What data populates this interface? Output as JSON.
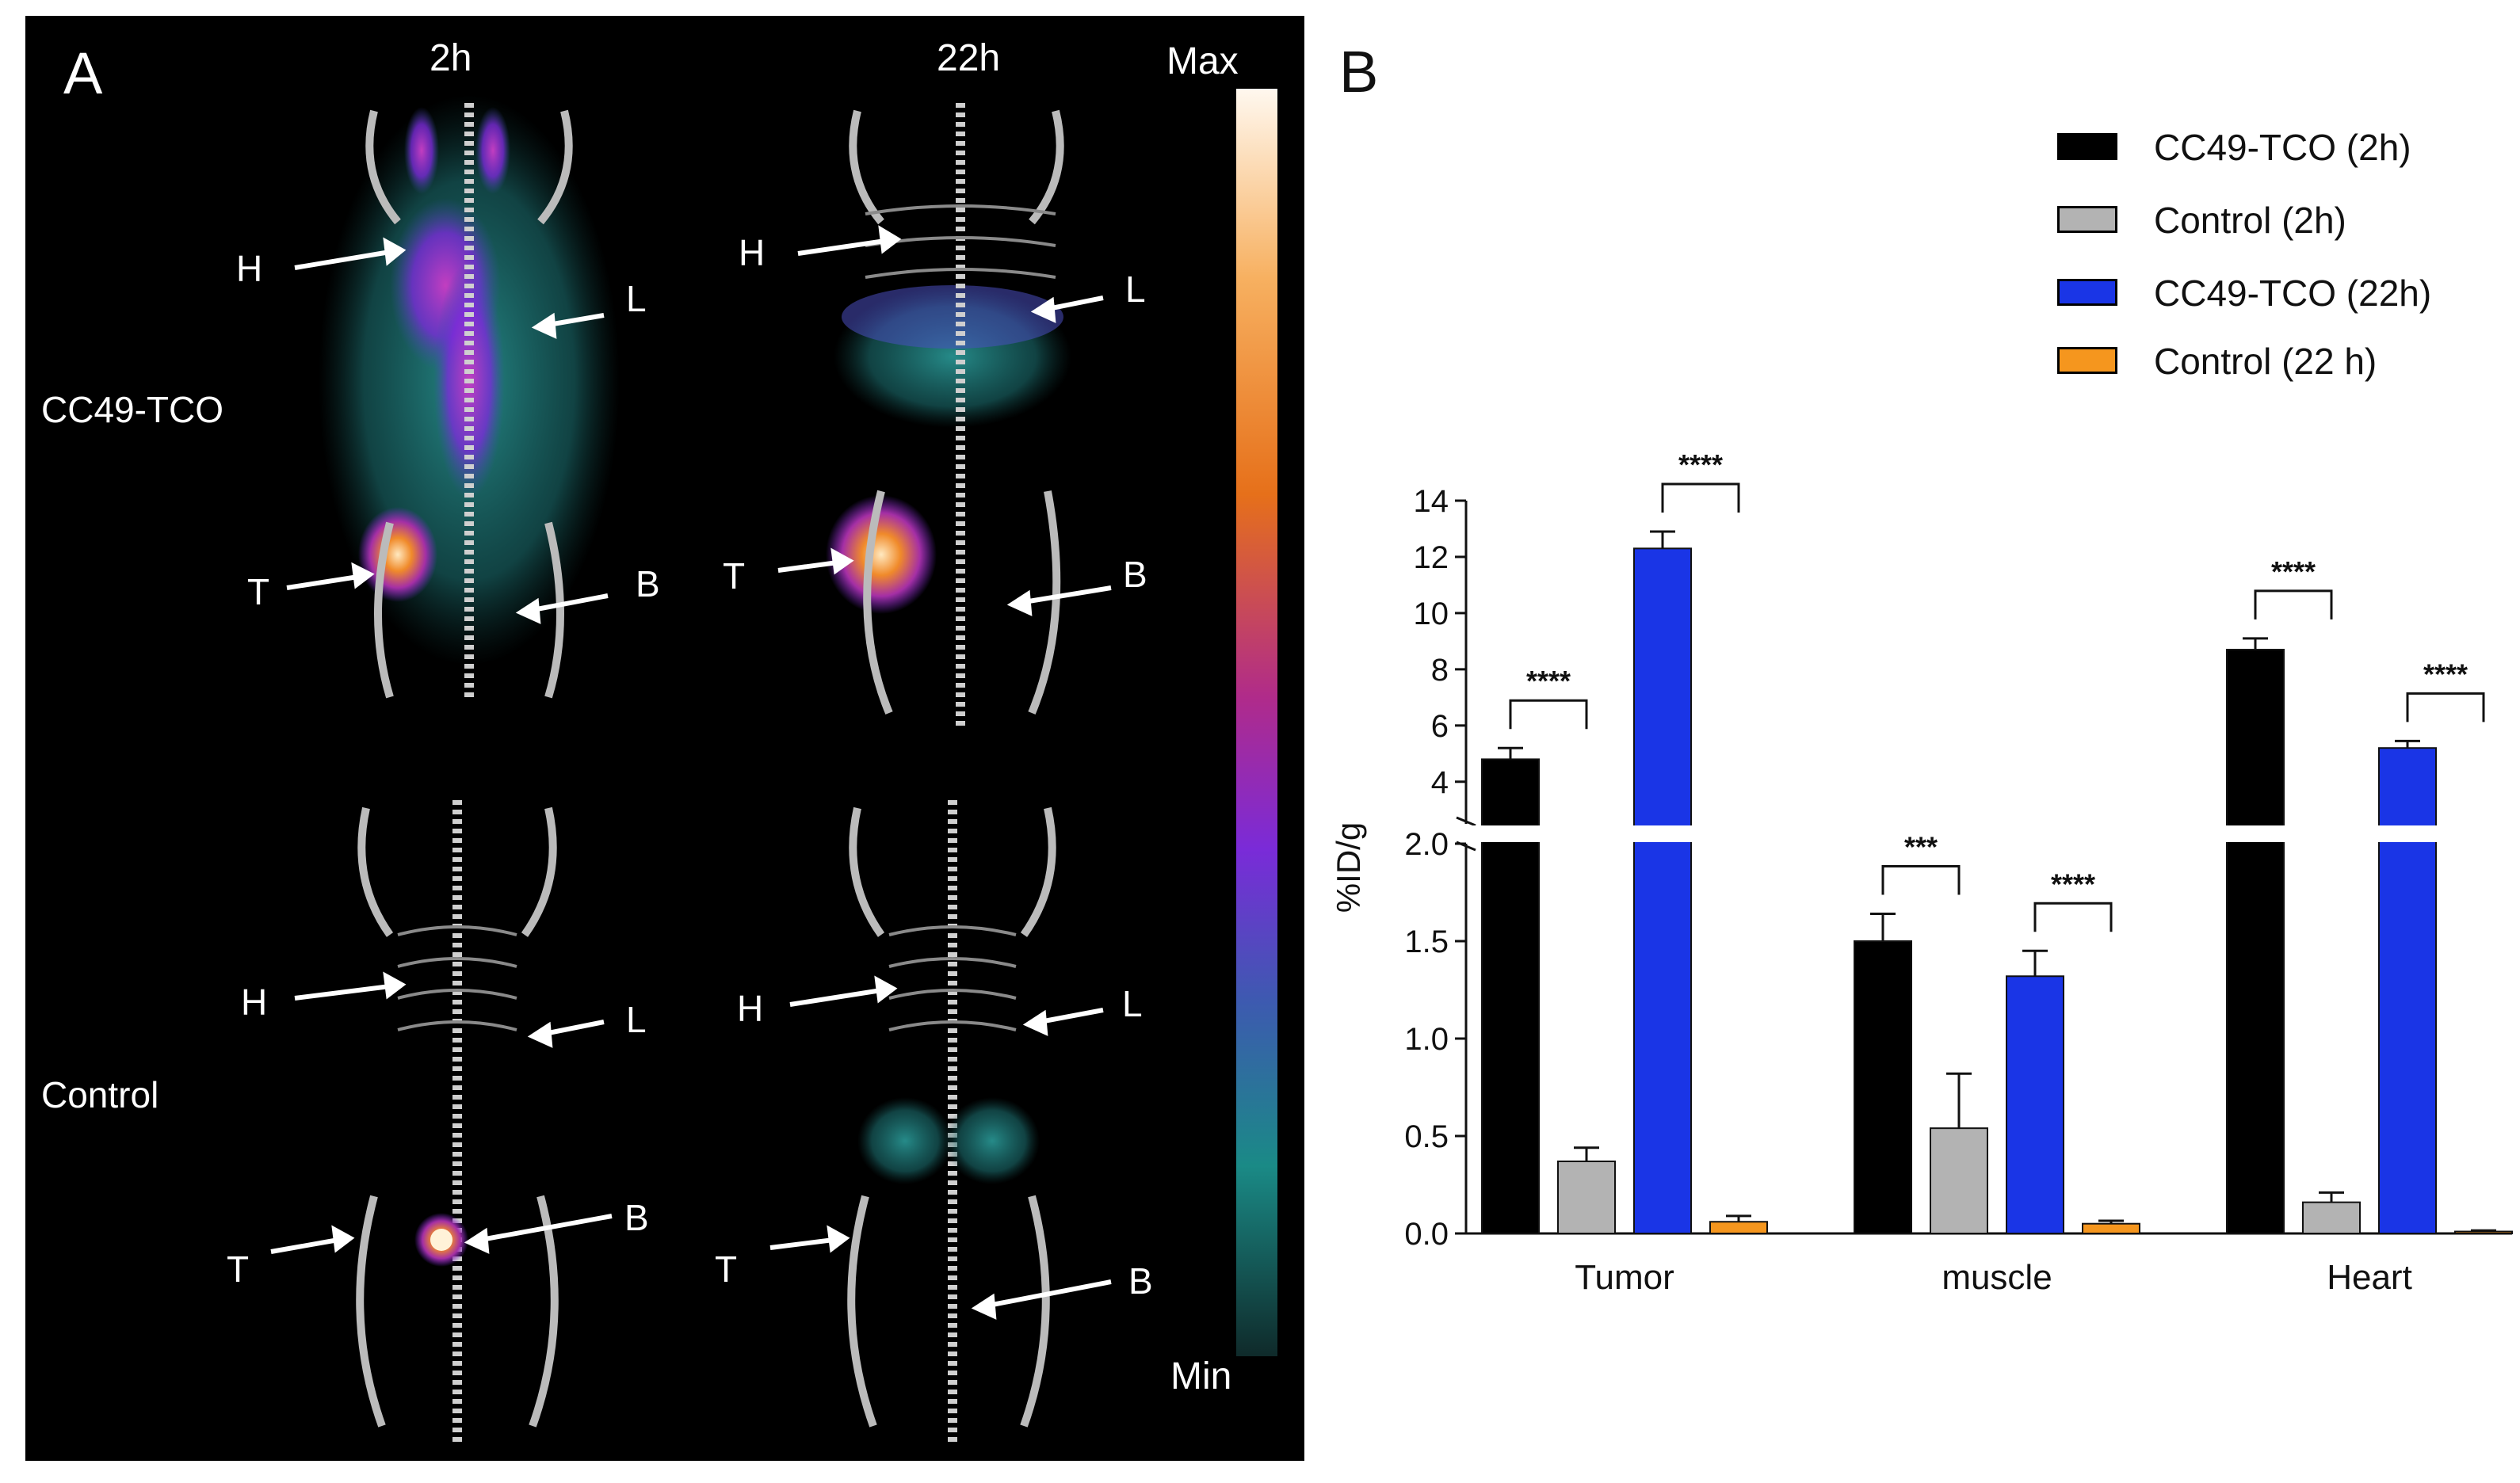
{
  "panel_a": {
    "letter": "A",
    "columns": [
      "2h",
      "22h"
    ],
    "rows": [
      "CC49-TCO",
      "Control"
    ],
    "scale": {
      "max_label": "Max",
      "min_label": "Min"
    },
    "mice": [
      {
        "name": "mouse-cc49-2h",
        "arrows": [
          "H",
          "L",
          "T",
          "B"
        ]
      },
      {
        "name": "mouse-cc49-22h",
        "arrows": [
          "H",
          "L",
          "T",
          "B"
        ]
      },
      {
        "name": "mouse-control-2h",
        "arrows": [
          "H",
          "L",
          "T",
          "B"
        ]
      },
      {
        "name": "mouse-control-22h",
        "arrows": [
          "H",
          "L",
          "T",
          "B"
        ]
      }
    ]
  },
  "colors": {
    "cc49_2h": "#000000",
    "control_2h": "#b3b3b3",
    "cc49_22h": "#1a35e6",
    "control_22h": "#f5961e"
  },
  "chart_data": {
    "type": "bar",
    "panel_letter": "B",
    "categories": [
      "Tumor",
      "muscle",
      "Heart"
    ],
    "ylabel": "%ID/g",
    "axis_break": {
      "lower": [
        0,
        2.0
      ],
      "upper": [
        2.5,
        14
      ]
    },
    "lower_ticks": [
      "0.0",
      "0.5",
      "1.0",
      "1.5",
      "2.0"
    ],
    "upper_ticks": [
      "4",
      "6",
      "8",
      "10",
      "12",
      "14"
    ],
    "series": [
      {
        "name": "CC49-TCO (2h)",
        "color": "#000000",
        "values": [
          4.8,
          1.5,
          8.7
        ],
        "errors": [
          0.4,
          0.14,
          0.4
        ]
      },
      {
        "name": "Control (2h)",
        "color": "#b3b3b3",
        "values": [
          0.37,
          0.54,
          0.16
        ],
        "errors": [
          0.07,
          0.28,
          0.05
        ]
      },
      {
        "name": "CC49-TCO (22h)",
        "color": "#1a35e6",
        "values": [
          12.3,
          1.32,
          5.2
        ],
        "errors": [
          0.6,
          0.13,
          0.25
        ]
      },
      {
        "name": "Control (22 h)",
        "color": "#f5961e",
        "values": [
          0.06,
          0.05,
          0.01
        ],
        "errors": [
          0.03,
          0.015,
          0.005
        ]
      }
    ],
    "significance": [
      {
        "category": 0,
        "pair": [
          0,
          1
        ],
        "label": "****"
      },
      {
        "category": 0,
        "pair": [
          2,
          3
        ],
        "label": "****"
      },
      {
        "category": 1,
        "pair": [
          0,
          1
        ],
        "label": "***"
      },
      {
        "category": 1,
        "pair": [
          2,
          3
        ],
        "label": "****"
      },
      {
        "category": 2,
        "pair": [
          0,
          1
        ],
        "label": "****"
      },
      {
        "category": 2,
        "pair": [
          2,
          3
        ],
        "label": "****"
      }
    ]
  }
}
